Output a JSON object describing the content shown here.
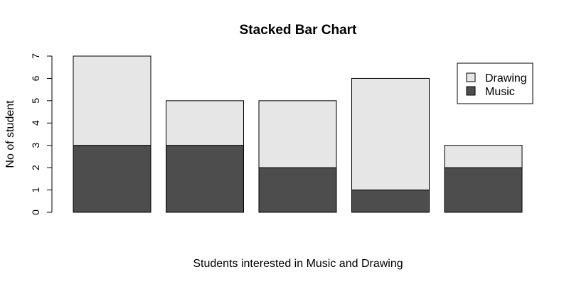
{
  "chart_data": {
    "type": "bar",
    "stacked": true,
    "title": "Stacked Bar Chart",
    "xlabel": "Students interested in Music and Drawing",
    "ylabel": "No of student",
    "ylim": [
      0,
      7
    ],
    "yticks": [
      0,
      1,
      2,
      3,
      4,
      5,
      6,
      7
    ],
    "grid": false,
    "legend_position": "top-right",
    "categories": [
      "",
      "",
      "",
      "",
      ""
    ],
    "series": [
      {
        "name": "Music",
        "values": [
          3,
          3,
          2,
          1,
          2
        ],
        "color": "#4d4d4d"
      },
      {
        "name": "Drawing",
        "values": [
          4,
          2,
          3,
          5,
          1
        ],
        "color": "#e6e6e6"
      }
    ],
    "legend": [
      {
        "name": "Drawing",
        "color": "#e6e6e6"
      },
      {
        "name": "Music",
        "color": "#4d4d4d"
      }
    ]
  }
}
